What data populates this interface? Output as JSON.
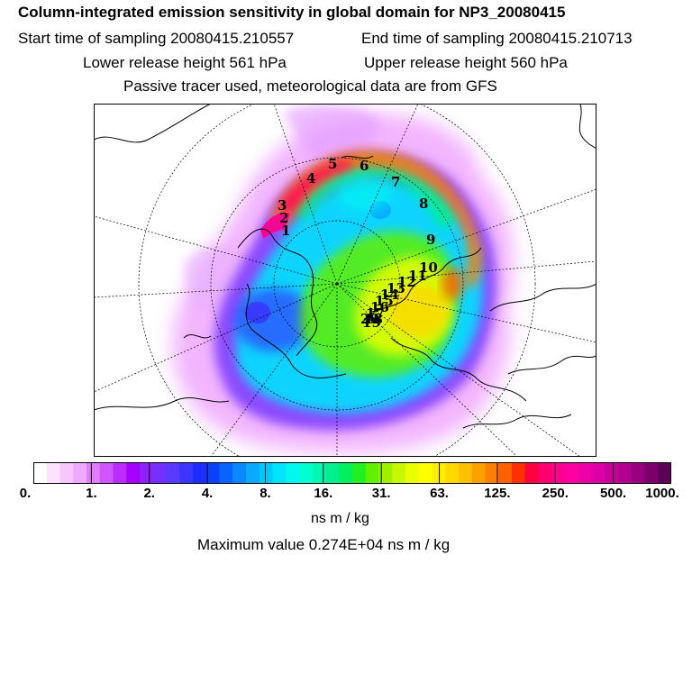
{
  "header": {
    "title": "Column-integrated emission sensitivity in global domain for NP3_20080415",
    "start_time": "Start time of sampling 20080415.210557",
    "end_time": "End time of sampling 20080415.210713",
    "lower_release": "Lower release height  561 hPa",
    "upper_release": "Upper release height  560 hPa",
    "tracer_note": "Passive tracer used, meteorological data are from GFS"
  },
  "map": {
    "projection": "polar stereographic (north pole)",
    "track_labels": [
      "1",
      "2",
      "3",
      "4",
      "5",
      "6",
      "7",
      "8",
      "9",
      "10",
      "11",
      "12",
      "13",
      "14",
      "15",
      "16",
      "17",
      "18",
      "19",
      "20"
    ]
  },
  "colorbar": {
    "ticks": [
      "0.",
      "1.",
      "2.",
      "4.",
      "8.",
      "16.",
      "31.",
      "63.",
      "125.",
      "250.",
      "500.",
      "1000."
    ],
    "colors": [
      "#ffffff",
      "#fbe3ff",
      "#f6c6ff",
      "#f0a8ff",
      "#e17cff",
      "#cf55ff",
      "#bb2cff",
      "#a600ff",
      "#8d22ff",
      "#7430ff",
      "#5a3aff",
      "#3a36ff",
      "#1c2dff",
      "#0a40ff",
      "#0a64ff",
      "#0a88ff",
      "#08a8ff",
      "#00c8ff",
      "#00e4ff",
      "#00f8f0",
      "#00ffd0",
      "#00f8b0",
      "#00f090",
      "#00f060",
      "#20f020",
      "#60f000",
      "#a0f000",
      "#c8f800",
      "#e8ff00",
      "#ffff00",
      "#ffee00",
      "#ffd800",
      "#ffc000",
      "#ffa000",
      "#ff8000",
      "#ff6000",
      "#ff3000",
      "#ff0040",
      "#ff0070",
      "#ff0090",
      "#ff00a0",
      "#ee00a8",
      "#dd00a4",
      "#c8009c",
      "#b00090",
      "#96007f",
      "#7a006c",
      "#5a0055"
    ],
    "units": "ns m / kg",
    "max_value": "Maximum value  0.274E+04 ns m / kg"
  }
}
